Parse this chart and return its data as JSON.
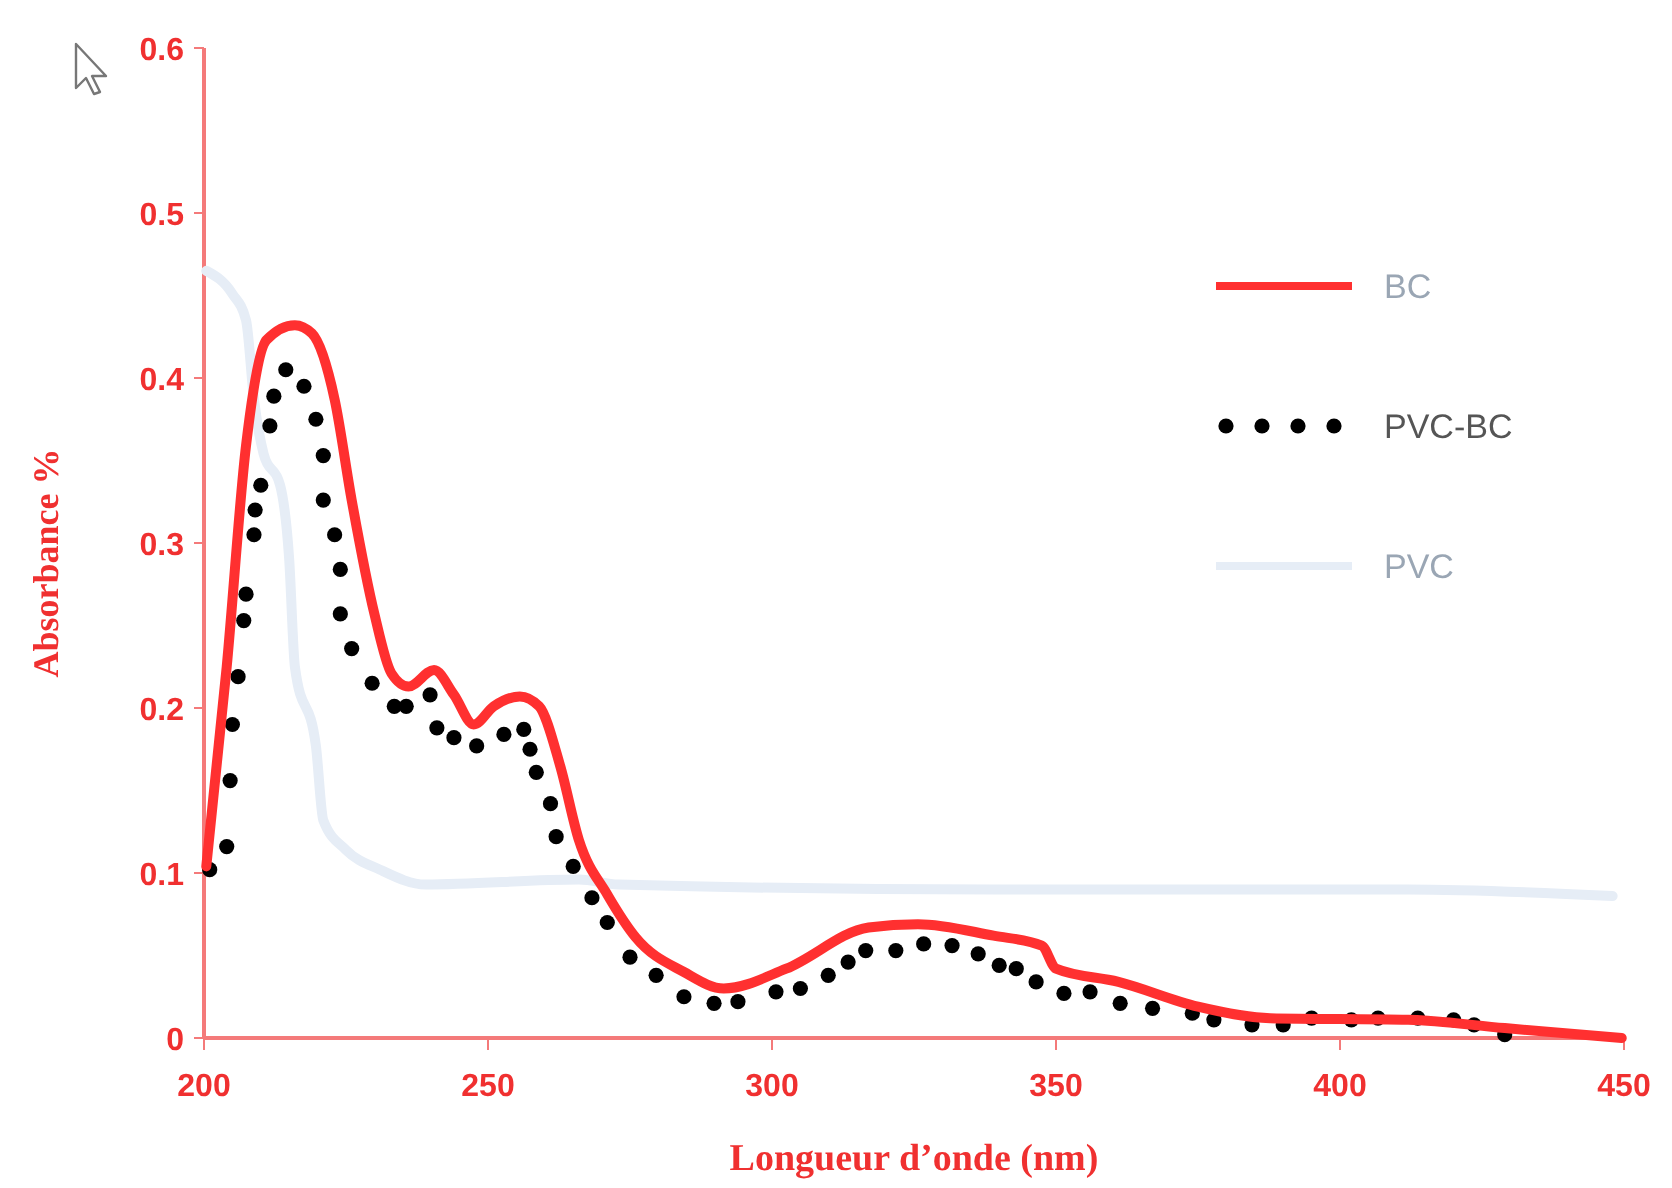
{
  "chart_data": {
    "type": "line",
    "xlabel": "Longueur d’onde (nm)",
    "ylabel": "Absorbance  %",
    "xlim": [
      200,
      450
    ],
    "xticks": [
      200,
      250,
      300,
      350,
      400,
      450
    ],
    "ylim": [
      0,
      0.6
    ],
    "yticks": [
      0,
      0.1,
      0.2,
      0.3,
      0.4,
      0.5,
      0.6
    ],
    "grid": false,
    "legend": "top right",
    "series": [
      {
        "name": "BC",
        "color": "#ff3030",
        "line_style": "solid",
        "x": [
          200.4,
          204,
          207.4,
          211,
          216,
          219,
          223,
          226,
          230,
          233,
          236,
          240.5,
          244,
          247.5,
          251,
          255.6,
          259,
          262.7,
          266,
          271,
          276,
          284.5,
          291.5,
          302.5,
          317,
          325.7,
          339,
          347.5,
          350,
          361,
          375,
          387.7,
          412,
          429,
          449.6
        ],
        "values": [
          0.104,
          0.225,
          0.359,
          0.423,
          0.432,
          0.427,
          0.387,
          0.326,
          0.257,
          0.221,
          0.213,
          0.223,
          0.208,
          0.19,
          0.201,
          0.207,
          0.201,
          0.165,
          0.12,
          0.087,
          0.061,
          0.04,
          0.03,
          0.042,
          0.067,
          0.069,
          0.062,
          0.056,
          0.042,
          0.034,
          0.019,
          0.012,
          0.011,
          0.006,
          0.0
        ]
      },
      {
        "name": "PVC-BC",
        "type": "scatter",
        "marker": "circle",
        "color": "#000000",
        "x": [
          201,
          204,
          204.6,
          205,
          206,
          207,
          207.4,
          208.8,
          209,
          210,
          211.6,
          212.3,
          214.4,
          217.6,
          219.7,
          221,
          221,
          223,
          224,
          224,
          226,
          229.6,
          233.5,
          235.6,
          239.8,
          241,
          244,
          248,
          252.8,
          256.3,
          257.4,
          258.5,
          261,
          262,
          265,
          268.3,
          271,
          275,
          279.6,
          284.5,
          289.8,
          294,
          300.7,
          305,
          309.9,
          313.4,
          316.5,
          321.8,
          326.7,
          331.7,
          336.3,
          340,
          343,
          346.5,
          351.4,
          356,
          361.3,
          367,
          374,
          377.8,
          384.5,
          390,
          395,
          402,
          406.7,
          413.7,
          420,
          423.6,
          429
        ],
        "values": [
          0.102,
          0.116,
          0.156,
          0.19,
          0.219,
          0.253,
          0.269,
          0.305,
          0.32,
          0.335,
          0.371,
          0.389,
          0.405,
          0.395,
          0.375,
          0.353,
          0.326,
          0.305,
          0.284,
          0.257,
          0.236,
          0.215,
          0.201,
          0.201,
          0.208,
          0.188,
          0.182,
          0.177,
          0.184,
          0.187,
          0.175,
          0.161,
          0.142,
          0.122,
          0.104,
          0.085,
          0.07,
          0.049,
          0.038,
          0.025,
          0.021,
          0.022,
          0.028,
          0.03,
          0.038,
          0.046,
          0.053,
          0.053,
          0.057,
          0.056,
          0.051,
          0.044,
          0.042,
          0.034,
          0.027,
          0.028,
          0.021,
          0.018,
          0.015,
          0.011,
          0.008,
          0.008,
          0.012,
          0.011,
          0.012,
          0.012,
          0.011,
          0.008,
          0.002
        ]
      },
      {
        "name": "PVC",
        "color": "#e6edf6",
        "line_style": "solid",
        "x": [
          200.4,
          205,
          207.4,
          208.8,
          210.5,
          213.4,
          215,
          216,
          219.7,
          221,
          225,
          231,
          239,
          266,
          273,
          339,
          412,
          448
        ],
        "values": [
          0.465,
          0.451,
          0.435,
          0.387,
          0.354,
          0.335,
          0.29,
          0.225,
          0.177,
          0.132,
          0.114,
          0.102,
          0.093,
          0.096,
          0.093,
          0.09,
          0.09,
          0.086
        ]
      }
    ]
  }
}
